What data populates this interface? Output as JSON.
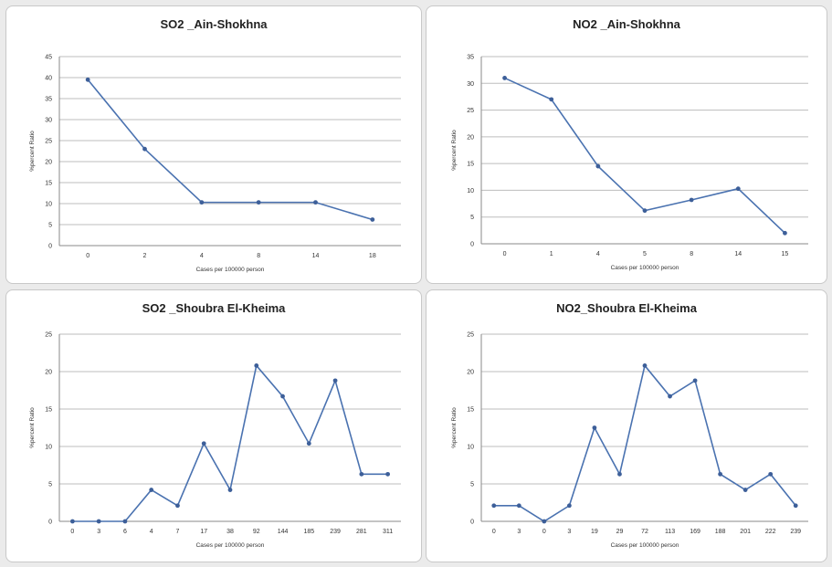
{
  "chart_data": [
    {
      "type": "line",
      "title": "SO2 _Ain-Shokhna",
      "xlabel": "Cases per 100000 person",
      "ylabel": "%percent Ratio",
      "categories": [
        "0",
        "2",
        "4",
        "8",
        "14",
        "18"
      ],
      "values": [
        39.5,
        23,
        10.3,
        10.3,
        10.3,
        6.2
      ],
      "yticks": [
        "0",
        "5",
        "10",
        "15",
        "20",
        "25",
        "30",
        "35",
        "40",
        "45"
      ],
      "ylim": [
        0,
        45
      ],
      "grid": "horizontal",
      "color": "#4a72b0"
    },
    {
      "type": "line",
      "title": "NO2 _Ain-Shokhna",
      "xlabel": "Cases per 100000 person",
      "ylabel": "%percent Ratio",
      "categories": [
        "0",
        "1",
        "4",
        "5",
        "8",
        "14",
        "15"
      ],
      "values": [
        31,
        27,
        14.5,
        6.2,
        8.2,
        10.3,
        2
      ],
      "yticks": [
        "0",
        "5",
        "10",
        "15",
        "20",
        "25",
        "30",
        "35"
      ],
      "ylim": [
        0,
        35
      ],
      "grid": "horizontal",
      "color": "#4a72b0"
    },
    {
      "type": "line",
      "title": "SO2 _Shoubra El-Kheima",
      "xlabel": "Cases per 100000 person",
      "ylabel": "%percent Ratio",
      "categories": [
        "0",
        "3",
        "6",
        "4",
        "7",
        "17",
        "38",
        "92",
        "144",
        "185",
        "239",
        "281",
        "311"
      ],
      "values": [
        0,
        0,
        0,
        4.2,
        2.1,
        10.4,
        4.2,
        20.8,
        16.7,
        10.4,
        18.8,
        6.3,
        6.3
      ],
      "yticks": [
        "0",
        "5",
        "10",
        "15",
        "20",
        "25"
      ],
      "ylim": [
        0,
        25
      ],
      "grid": "horizontal",
      "color": "#4a72b0"
    },
    {
      "type": "line",
      "title": "NO2_Shoubra El-Kheima",
      "xlabel": "Cases per 100000 person",
      "ylabel": "%percent Ratio",
      "categories": [
        "0",
        "3",
        "0",
        "3",
        "19",
        "29",
        "72",
        "113",
        "169",
        "188",
        "201",
        "222",
        "239"
      ],
      "values": [
        2.1,
        2.1,
        0,
        2.1,
        12.5,
        6.3,
        20.8,
        16.7,
        18.8,
        6.3,
        4.2,
        6.3,
        2.1
      ],
      "yticks": [
        "0",
        "5",
        "10",
        "15",
        "20",
        "25"
      ],
      "ylim": [
        0,
        25
      ],
      "grid": "horizontal",
      "color": "#4a72b0"
    }
  ]
}
